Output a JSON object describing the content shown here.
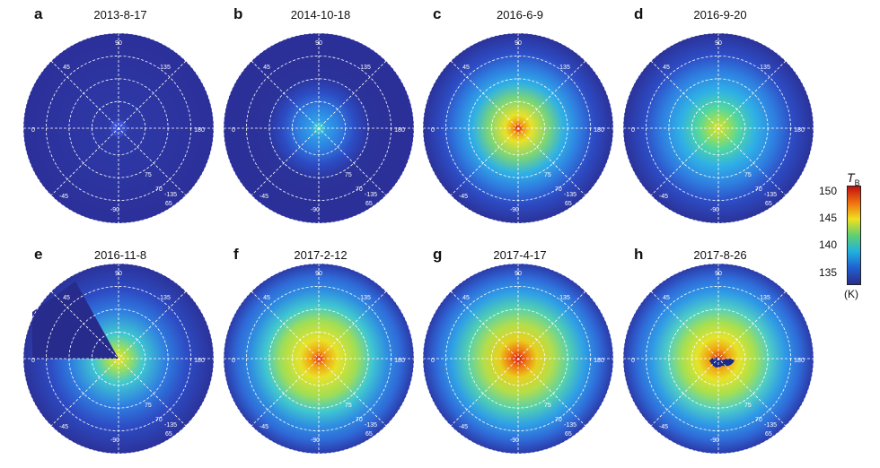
{
  "panels": [
    {
      "letter": "a",
      "date": "2013-8-17"
    },
    {
      "letter": "b",
      "date": "2014-10-18"
    },
    {
      "letter": "c",
      "date": "2016-6-9"
    },
    {
      "letter": "d",
      "date": "2016-9-20"
    },
    {
      "letter": "e",
      "date": "2016-11-8"
    },
    {
      "letter": "f",
      "date": "2017-2-12"
    },
    {
      "letter": "g",
      "date": "2017-4-17"
    },
    {
      "letter": "h",
      "date": "2017-8-26"
    }
  ],
  "longitude_labels": [
    "90",
    "45",
    "0",
    "-45",
    "-90",
    "135",
    "180",
    "-135"
  ],
  "latitude_labels": [
    "75",
    "70",
    "65",
    "60"
  ],
  "colorbar": {
    "title": "T",
    "subscript": "B",
    "ticks": [
      "150",
      "145",
      "140",
      "135"
    ],
    "unit": "(K)",
    "colors": [
      "#c01010",
      "#f07010",
      "#f0e020",
      "#60d070",
      "#20b0e0",
      "#2060d0",
      "#2a2c8a"
    ]
  }
}
